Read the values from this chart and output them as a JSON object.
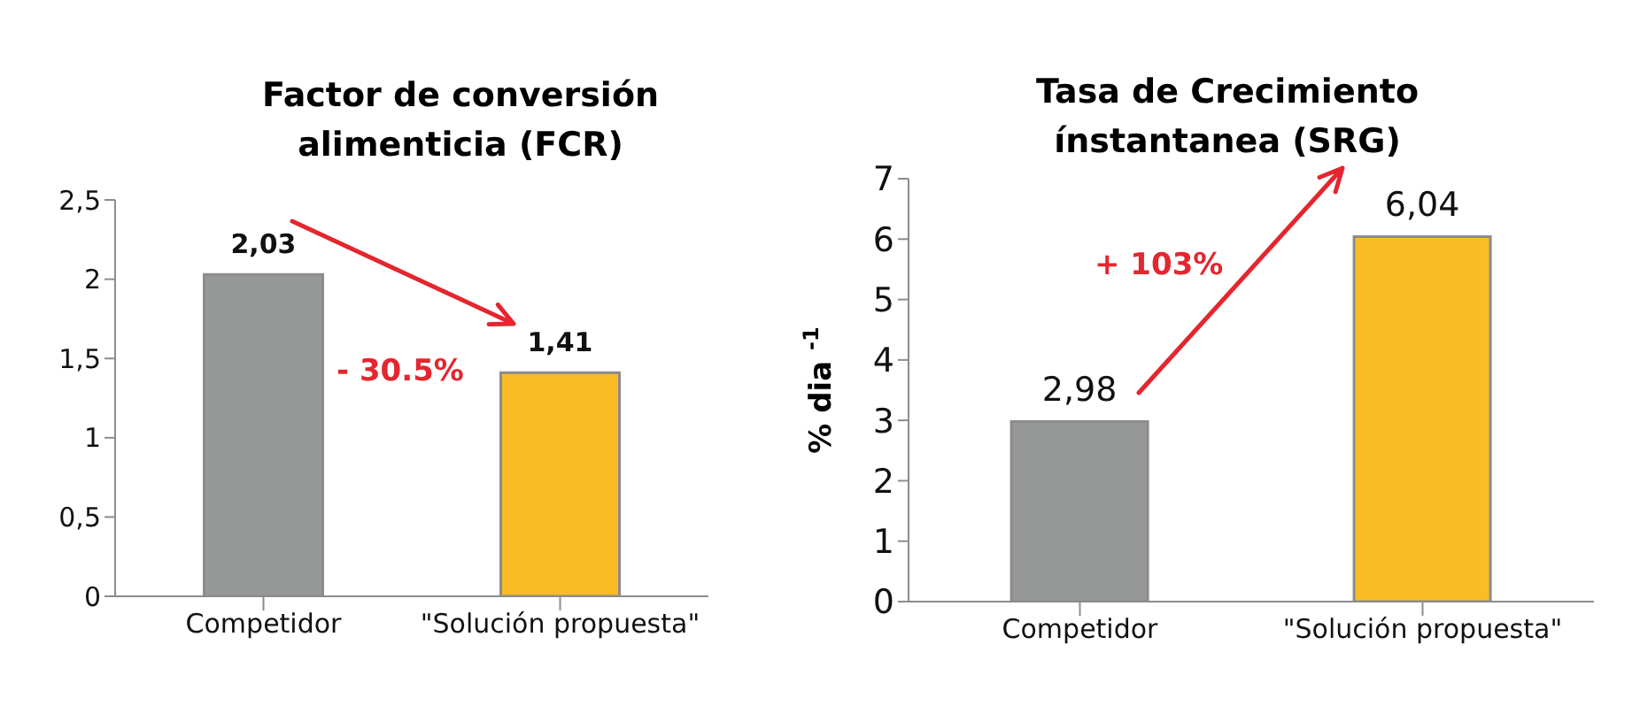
{
  "chart_data": [
    {
      "type": "bar",
      "title": "Factor de conversión alimenticia (FCR)",
      "categories": [
        "Competidor",
        "\"Solución propuesta\""
      ],
      "values": [
        2.03,
        1.41
      ],
      "colors": [
        "#969898",
        "#fbbc25"
      ],
      "value_labels": [
        "2,03",
        "1,41"
      ],
      "ylim": [
        0,
        2.5
      ],
      "yticks": [
        {
          "value": 0,
          "label": "0"
        },
        {
          "value": 0.5,
          "label": "0,5"
        },
        {
          "value": 1,
          "label": "1"
        },
        {
          "value": 1.5,
          "label": "1,5"
        },
        {
          "value": 2,
          "label": "2"
        },
        {
          "value": 2.5,
          "label": "2,5"
        }
      ],
      "grid": false,
      "legend": false,
      "annotations": [
        "- 30.5%"
      ]
    },
    {
      "type": "bar",
      "title": "Tasa de Crecimiento ínstantanea (SRG)",
      "ylabel": "% dia $^{-1}$",
      "categories": [
        "Competidor",
        "\"Solución propuesta\""
      ],
      "values": [
        2.98,
        6.04
      ],
      "colors": [
        "#969898",
        "#fbbc25"
      ],
      "value_labels": [
        "2,98",
        "6,04"
      ],
      "ylim": [
        0,
        7
      ],
      "yticks": [
        0,
        1,
        2,
        3,
        4,
        5,
        6,
        7
      ],
      "grid": false,
      "legend": false,
      "annotations": [
        "+ 103%"
      ]
    }
  ]
}
